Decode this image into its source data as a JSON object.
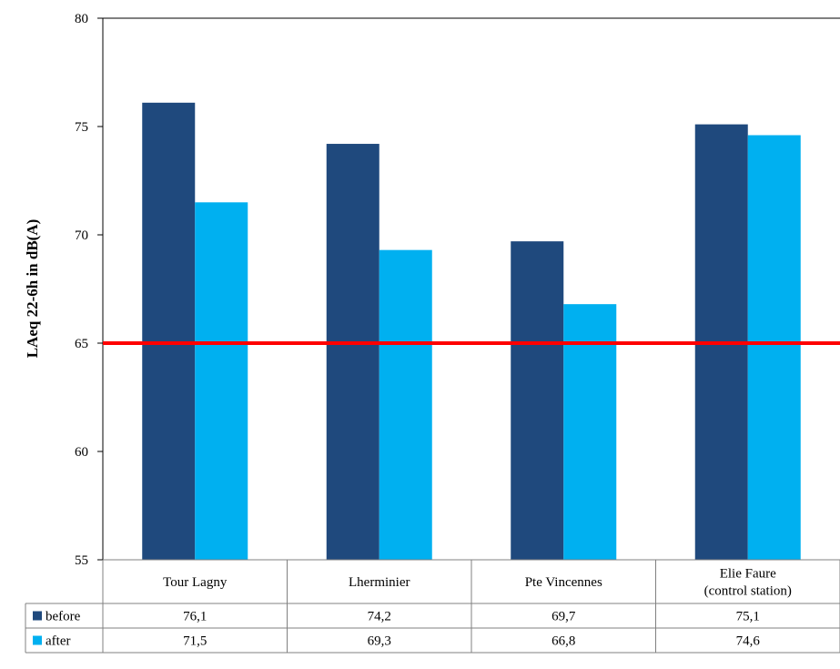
{
  "chart_data": {
    "type": "bar",
    "title": "",
    "xlabel": "",
    "ylabel": "LAeq 22-6h in dB(A)",
    "ylim": [
      55,
      80
    ],
    "yticks": [
      55,
      60,
      65,
      70,
      75,
      80
    ],
    "categories": [
      [
        "Tour Lagny"
      ],
      [
        "Lherminier"
      ],
      [
        "Pte Vincennes"
      ],
      [
        "Elie Faure",
        "(control station)"
      ]
    ],
    "series": [
      {
        "name": "before",
        "color": "#1f497d",
        "values": [
          "76,1",
          "74,2",
          "69,7",
          "75,1"
        ]
      },
      {
        "name": "after",
        "color": "#00b0f0",
        "values": [
          "71,5",
          "69,3",
          "66,8",
          "74,6"
        ]
      }
    ],
    "threshold": {
      "value": 65,
      "color": "#ff0000"
    },
    "grid": false,
    "legend": "data-table"
  }
}
